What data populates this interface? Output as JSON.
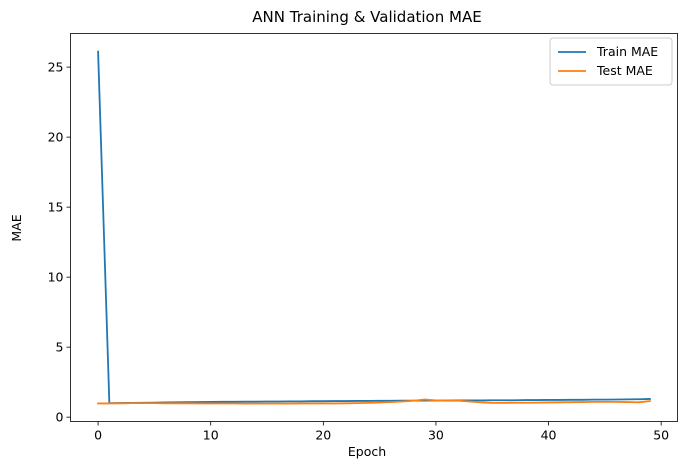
{
  "chart_data": {
    "type": "line",
    "title": "ANN Training & Validation MAE",
    "xlabel": "Epoch",
    "ylabel": "MAE",
    "xlim": [
      -2.45,
      51.45
    ],
    "ylim": [
      -0.31,
      27.4
    ],
    "xticks": [
      0,
      10,
      20,
      30,
      40,
      50
    ],
    "yticks": [
      0,
      5,
      10,
      15,
      20,
      25
    ],
    "grid": false,
    "legend_position": "top-right",
    "x": [
      0,
      1,
      2,
      3,
      4,
      5,
      6,
      7,
      8,
      9,
      10,
      11,
      12,
      13,
      14,
      15,
      16,
      17,
      18,
      19,
      20,
      21,
      22,
      23,
      24,
      25,
      26,
      27,
      28,
      29,
      30,
      31,
      32,
      33,
      34,
      35,
      36,
      37,
      38,
      39,
      40,
      41,
      42,
      43,
      44,
      45,
      46,
      47,
      48,
      49
    ],
    "series": [
      {
        "name": "Train MAE",
        "color": "#1f77b4",
        "values": [
          26.1,
          1.0,
          1.01,
          1.02,
          1.03,
          1.04,
          1.05,
          1.06,
          1.07,
          1.08,
          1.09,
          1.1,
          1.1,
          1.11,
          1.11,
          1.12,
          1.12,
          1.13,
          1.13,
          1.14,
          1.14,
          1.15,
          1.15,
          1.16,
          1.16,
          1.17,
          1.17,
          1.18,
          1.18,
          1.18,
          1.19,
          1.19,
          1.2,
          1.2,
          1.2,
          1.21,
          1.21,
          1.21,
          1.22,
          1.22,
          1.23,
          1.23,
          1.24,
          1.24,
          1.25,
          1.25,
          1.26,
          1.27,
          1.28,
          1.3
        ]
      },
      {
        "name": "Test MAE",
        "color": "#ff7f0e",
        "values": [
          0.98,
          0.98,
          0.99,
          1.0,
          1.0,
          1.0,
          0.99,
          0.99,
          0.99,
          0.98,
          0.98,
          0.98,
          0.98,
          0.97,
          0.97,
          0.97,
          0.97,
          0.97,
          0.98,
          0.98,
          0.98,
          0.98,
          0.99,
          1.0,
          1.02,
          1.05,
          1.08,
          1.12,
          1.17,
          1.26,
          1.2,
          1.17,
          1.17,
          1.12,
          1.06,
          1.02,
          1.02,
          1.03,
          1.03,
          1.04,
          1.05,
          1.06,
          1.07,
          1.08,
          1.09,
          1.09,
          1.09,
          1.08,
          1.06,
          1.15
        ]
      }
    ]
  }
}
